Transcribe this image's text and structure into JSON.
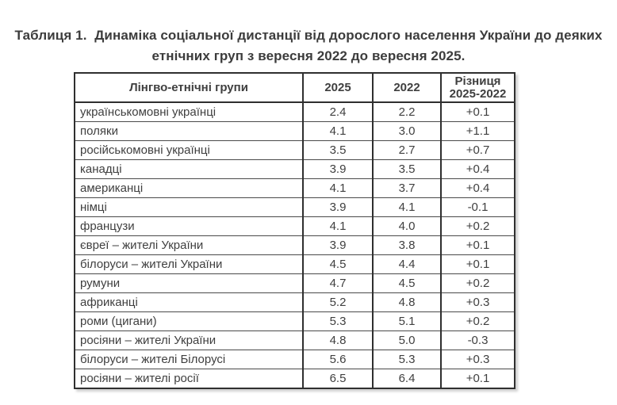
{
  "caption": {
    "line1": "Таблиця 1.  Динаміка соціальної дистанції від дорослого населення України до деяких",
    "line2": "етнічних груп з вересня 2022 до вересня 2025."
  },
  "table": {
    "headers": {
      "group": "Лінгво-етнічні групи",
      "y2025": "2025",
      "y2022": "2022",
      "diff_line1": "Різниця",
      "diff_line2": "2025-2022"
    },
    "rows": [
      {
        "group": "українськомовні українці",
        "v2025": "2.4",
        "v2022": "2.2",
        "diff": "+0.1"
      },
      {
        "group": "поляки",
        "v2025": "4.1",
        "v2022": "3.0",
        "diff": "+1.1"
      },
      {
        "group": "російськомовні українці",
        "v2025": "3.5",
        "v2022": "2.7",
        "diff": "+0.7"
      },
      {
        "group": "канадці",
        "v2025": "3.9",
        "v2022": "3.5",
        "diff": "+0.4"
      },
      {
        "group": "американці",
        "v2025": "4.1",
        "v2022": "3.7",
        "diff": "+0.4"
      },
      {
        "group": "німці",
        "v2025": "3.9",
        "v2022": "4.1",
        "diff": "-0.1"
      },
      {
        "group": "французи",
        "v2025": "4.1",
        "v2022": "4.0",
        "diff": "+0.2"
      },
      {
        "group": "євреї – жителі України",
        "v2025": "3.9",
        "v2022": "3.8",
        "diff": "+0.1"
      },
      {
        "group": "білоруси – жителі України",
        "v2025": "4.5",
        "v2022": "4.4",
        "diff": "+0.1"
      },
      {
        "group": "румуни",
        "v2025": "4.7",
        "v2022": "4.5",
        "diff": "+0.2"
      },
      {
        "group": "африканці",
        "v2025": "5.2",
        "v2022": "4.8",
        "diff": "+0.3"
      },
      {
        "group": "роми (цигани)",
        "v2025": "5.3",
        "v2022": "5.1",
        "diff": "+0.2"
      },
      {
        "group": "росіяни – жителі України",
        "v2025": "4.8",
        "v2022": "5.0",
        "diff": "-0.3"
      },
      {
        "group": "білоруси – жителі Білорусі",
        "v2025": "5.6",
        "v2022": "5.3",
        "diff": "+0.3"
      },
      {
        "group": "росіяни – жителі росії",
        "v2025": "6.5",
        "v2022": "6.4",
        "diff": "+0.1"
      }
    ]
  }
}
